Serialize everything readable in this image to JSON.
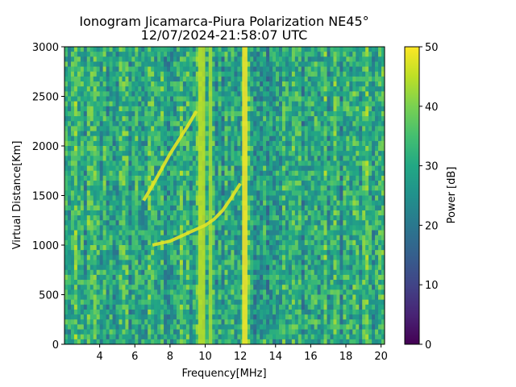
{
  "chart_data": {
    "type": "heatmap",
    "title": "Ionogram Jicamarca-Piura Polarization NE45°",
    "subtitle": "12/07/2024-21:58:07 UTC",
    "xlabel": "Frequency[MHz]",
    "ylabel": "Virtual Distance[Km]",
    "xlim": [
      2.0,
      20.2
    ],
    "ylim": [
      0,
      3000
    ],
    "x_ticks": [
      4,
      6,
      8,
      10,
      12,
      14,
      16,
      18,
      20
    ],
    "y_ticks": [
      0,
      500,
      1000,
      1500,
      2000,
      2500,
      3000
    ],
    "colorbar": {
      "label": "Power [dB]",
      "range": [
        0,
        50
      ],
      "ticks": [
        0,
        10,
        20,
        30,
        40,
        50
      ],
      "colormap": "viridis"
    },
    "background_power_db": 30,
    "bright_bands_mhz": [
      {
        "from": 9.6,
        "to": 10.0,
        "power_db": 45
      },
      {
        "from": 10.2,
        "to": 10.4,
        "power_db": 43
      },
      {
        "from": 12.1,
        "to": 12.4,
        "power_db": 50
      }
    ],
    "echo_traces": [
      {
        "name": "",
        "freq_mhz": [
          7.0,
          7.5,
          8.0,
          8.5,
          9.0,
          9.5,
          10.0,
          10.5,
          11.0,
          11.5,
          12.0
        ],
        "distance_km": [
          1000,
          1020,
          1040,
          1080,
          1120,
          1160,
          1200,
          1260,
          1350,
          1480,
          1620
        ]
      },
      {
        "name": "",
        "freq_mhz": [
          6.5,
          7.0,
          7.5,
          8.0,
          8.5,
          9.0,
          9.5
        ],
        "distance_km": [
          1450,
          1600,
          1760,
          1920,
          2060,
          2200,
          2350
        ]
      }
    ]
  }
}
